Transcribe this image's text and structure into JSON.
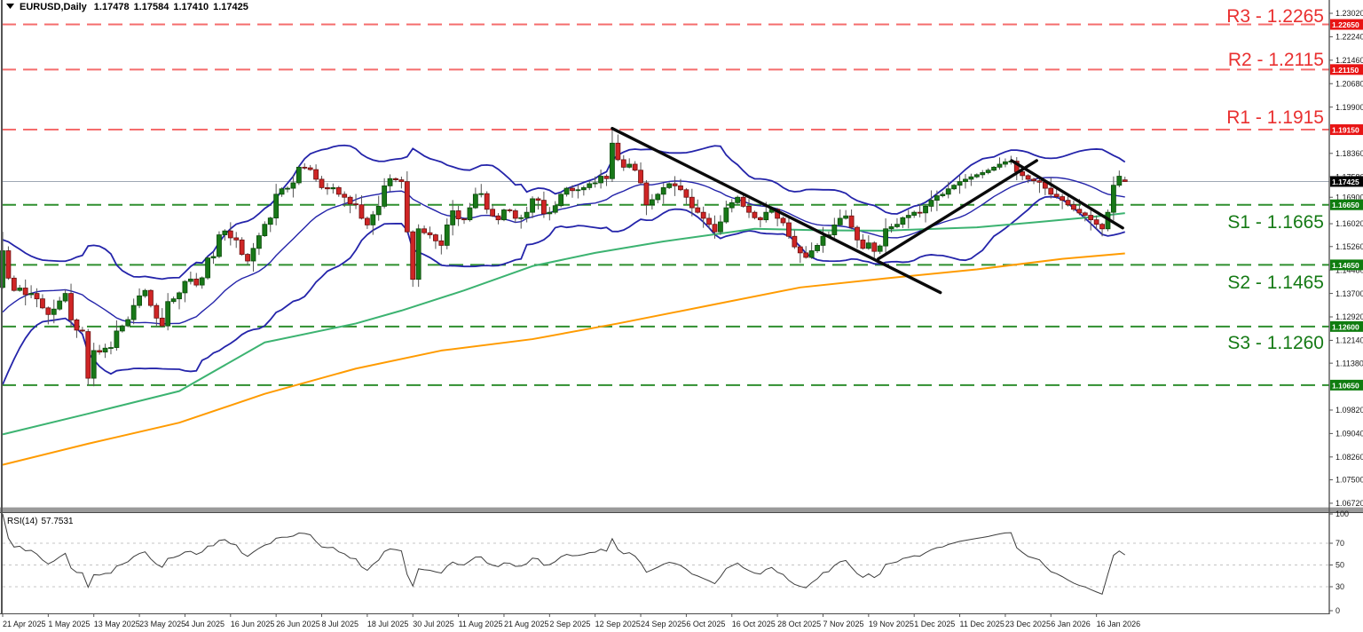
{
  "header": {
    "symbol": "EURUSD,Daily",
    "open": "1.17478",
    "high": "1.17584",
    "low": "1.17410",
    "close": "1.17425"
  },
  "colors": {
    "bull": "#187818",
    "bull_border": "#0a4a0a",
    "bear": "#cf2525",
    "bear_border": "#6b0f0f",
    "wick": "#555555",
    "bollinger": "#2424aa",
    "ma_fast": "#3cb371",
    "ma_slow": "#ff9b00",
    "resistance_line": "#f56c6c",
    "resistance_text": "#e93030",
    "support_line": "#2f8f2f",
    "support_text": "#157a15",
    "resistance_badge_bg": "#e81414",
    "support_badge_bg": "#0f7c0f",
    "current_badge_bg": "#000000",
    "current_price_line": "#9fa8b4",
    "trendline": "#0a0a0a",
    "rsi_line": "#3d3d3d",
    "rsi_grid": "#c4c4c4",
    "frame": "#555555"
  },
  "chart_data": {
    "type": "candlestick",
    "symbol": "EURUSD",
    "timeframe": "Daily",
    "last_ohlc": {
      "open": 1.17478,
      "high": 1.17584,
      "low": 1.1741,
      "close": 1.17425
    },
    "seed": 42,
    "price_axis": {
      "ylim": [
        1.06423,
        1.23463
      ],
      "ticks": [
        {
          "v": 1.2302,
          "label": "1.23020"
        },
        {
          "v": 1.2224,
          "label": "1.22240"
        },
        {
          "v": 1.2146,
          "label": "1.21460"
        },
        {
          "v": 1.2068,
          "label": "1.20680"
        },
        {
          "v": 1.199,
          "label": "1.19900"
        },
        {
          "v": 1.1836,
          "label": "1.18360"
        },
        {
          "v": 1.1758,
          "label": "1.17580"
        },
        {
          "v": 1.169,
          "label": "1.16900"
        },
        {
          "v": 1.1602,
          "label": "1.16020"
        },
        {
          "v": 1.1526,
          "label": "1.15260"
        },
        {
          "v": 1.1448,
          "label": "1.14480"
        },
        {
          "v": 1.137,
          "label": "1.13700"
        },
        {
          "v": 1.1292,
          "label": "1.12920"
        },
        {
          "v": 1.1214,
          "label": "1.12140"
        },
        {
          "v": 1.1138,
          "label": "1.11380"
        },
        {
          "v": 1.0982,
          "label": "1.09820"
        },
        {
          "v": 1.0904,
          "label": "1.09040"
        },
        {
          "v": 1.0826,
          "label": "1.08260"
        },
        {
          "v": 1.075,
          "label": "1.07500"
        },
        {
          "v": 1.0672,
          "label": "1.06720"
        }
      ],
      "badges": [
        {
          "label": "1.22650",
          "price": 1.2265,
          "kind": "resistance"
        },
        {
          "label": "1.21150",
          "price": 1.2115,
          "kind": "resistance"
        },
        {
          "label": "1.19150",
          "price": 1.1915,
          "kind": "resistance"
        },
        {
          "label": "1.17425",
          "price": 1.17425,
          "kind": "current"
        },
        {
          "label": "1.16650",
          "price": 1.1665,
          "kind": "support"
        },
        {
          "label": "1.14650",
          "price": 1.1465,
          "kind": "support"
        },
        {
          "label": "1.12600",
          "price": 1.126,
          "kind": "support"
        },
        {
          "label": "1.10650",
          "price": 1.1065,
          "kind": "support"
        }
      ]
    },
    "time_axis": {
      "ticks": [
        {
          "label": "21 Apr 2025",
          "i": 0
        },
        {
          "label": "1 May 2025",
          "i": 8
        },
        {
          "label": "13 May 2025",
          "i": 16
        },
        {
          "label": "23 May 2025",
          "i": 24
        },
        {
          "label": "4 Jun 2025",
          "i": 32
        },
        {
          "label": "16 Jun 2025",
          "i": 40
        },
        {
          "label": "26 Jun 2025",
          "i": 48
        },
        {
          "label": "8 Jul 2025",
          "i": 56
        },
        {
          "label": "18 Jul 2025",
          "i": 64
        },
        {
          "label": "30 Jul 2025",
          "i": 72
        },
        {
          "label": "11 Aug 2025",
          "i": 80
        },
        {
          "label": "21 Aug 2025",
          "i": 88
        },
        {
          "label": "2 Sep 2025",
          "i": 96
        },
        {
          "label": "12 Sep 2025",
          "i": 104
        },
        {
          "label": "24 Sep 2025",
          "i": 112
        },
        {
          "label": "6 Oct 2025",
          "i": 120
        },
        {
          "label": "16 Oct 2025",
          "i": 128
        },
        {
          "label": "28 Oct 2025",
          "i": 136
        },
        {
          "label": "7 Nov 2025",
          "i": 144
        },
        {
          "label": "19 Nov 2025",
          "i": 152
        },
        {
          "label": "1 Dec 2025",
          "i": 160
        },
        {
          "label": "11 Dec 2025",
          "i": 168
        },
        {
          "label": "23 Dec 2025",
          "i": 176
        },
        {
          "label": "6 Jan 2026",
          "i": 184
        },
        {
          "label": "16 Jan 2026",
          "i": 192
        }
      ]
    },
    "closes": [
      1.1512,
      1.1421,
      1.138,
      1.1388,
      1.1366,
      1.137,
      1.1352,
      1.1322,
      1.13,
      1.1318,
      1.1345,
      1.137,
      1.1282,
      1.1248,
      1.1245,
      1.1088,
      1.118,
      1.1175,
      1.1188,
      1.119,
      1.1245,
      1.1262,
      1.1283,
      1.133,
      1.1362,
      1.138,
      1.133,
      1.1288,
      1.1262,
      1.1343,
      1.1352,
      1.1372,
      1.141,
      1.1418,
      1.1398,
      1.1422,
      1.1488,
      1.1493,
      1.1565,
      1.1578,
      1.1555,
      1.1548,
      1.15,
      1.1478,
      1.152,
      1.1562,
      1.16,
      1.1621,
      1.17,
      1.1718,
      1.172,
      1.1738,
      1.179,
      1.1788,
      1.1782,
      1.175,
      1.1722,
      1.1718,
      1.1722,
      1.17,
      1.169,
      1.1668,
      1.1665,
      1.162,
      1.1598,
      1.1632,
      1.166,
      1.1728,
      1.1752,
      1.1748,
      1.1742,
      1.1575,
      1.1417,
      1.1585,
      1.1572,
      1.1565,
      1.1545,
      1.153,
      1.1598,
      1.1645,
      1.1618,
      1.1615,
      1.1655,
      1.17,
      1.1702,
      1.165,
      1.1628,
      1.1615,
      1.1648,
      1.1645,
      1.162,
      1.1622,
      1.164,
      1.1685,
      1.168,
      1.1635,
      1.164,
      1.1662,
      1.17,
      1.172,
      1.1712,
      1.1715,
      1.1722,
      1.1735,
      1.1738,
      1.176,
      1.1752,
      1.187,
      1.1815,
      1.179,
      1.18,
      1.178,
      1.1738,
      1.1665,
      1.1682,
      1.17,
      1.1722,
      1.1735,
      1.1728,
      1.1715,
      1.169,
      1.1655,
      1.164,
      1.162,
      1.16,
      1.1575,
      1.1608,
      1.1655,
      1.1672,
      1.169,
      1.166,
      1.164,
      1.1622,
      1.1615,
      1.164,
      1.165,
      1.162,
      1.1605,
      1.156,
      1.1525,
      1.1505,
      1.149,
      1.1512,
      1.153,
      1.156,
      1.1565,
      1.1598,
      1.162,
      1.1628,
      1.159,
      1.1548,
      1.152,
      1.1538,
      1.151,
      1.1528,
      1.1585,
      1.1592,
      1.16,
      1.1622,
      1.163,
      1.164,
      1.1638,
      1.166,
      1.168,
      1.1695,
      1.17,
      1.1718,
      1.173,
      1.1742,
      1.175,
      1.1758,
      1.1765,
      1.1772,
      1.178,
      1.179,
      1.18,
      1.1808,
      1.181,
      1.1775,
      1.1762,
      1.175,
      1.1745,
      1.174,
      1.172,
      1.17,
      1.1692,
      1.168,
      1.1665,
      1.165,
      1.1638,
      1.163,
      1.1615,
      1.16,
      1.1585,
      1.164,
      1.173,
      1.176,
      1.17425
    ],
    "prehistory_anchors": [
      [
        -200,
        1.065
      ],
      [
        -160,
        1.072
      ],
      [
        -120,
        1.068
      ],
      [
        -95,
        1.078
      ],
      [
        -70,
        1.082
      ],
      [
        -45,
        1.08
      ],
      [
        -32,
        1.083
      ],
      [
        -22,
        1.094
      ],
      [
        -14,
        1.125
      ],
      [
        -8,
        1.136
      ],
      [
        -4,
        1.14
      ],
      [
        -1,
        1.145
      ]
    ],
    "candle_overrides": {
      "0": {
        "o": 1.139,
        "h": 1.1575,
        "l": 1.1385
      },
      "15": {
        "o": 1.1243,
        "h": 1.1252,
        "l": 1.1065
      },
      "72": {
        "h": 1.158,
        "l": 1.1392
      },
      "73": {
        "h": 1.16,
        "l": 1.1392
      },
      "107": {
        "h": 1.1919,
        "l": 1.1741
      },
      "177": {
        "h": 1.1828
      },
      "197": {
        "o": 1.17478,
        "h": 1.17584,
        "l": 1.1741
      }
    },
    "indicators": {
      "bollinger": {
        "period": 20,
        "deviation": 2
      },
      "ma_fast": {
        "points": [
          [
            0,
            1.0901
          ],
          [
            15,
            1.097
          ],
          [
            31,
            1.1045
          ],
          [
            46,
            1.1207
          ],
          [
            62,
            1.127
          ],
          [
            70,
            1.1313
          ],
          [
            81,
            1.138
          ],
          [
            93,
            1.1461
          ],
          [
            104,
            1.1505
          ],
          [
            116,
            1.1543
          ],
          [
            132,
            1.1585
          ],
          [
            144,
            1.158
          ],
          [
            155,
            1.1579
          ],
          [
            171,
            1.159
          ],
          [
            182,
            1.1608
          ],
          [
            190,
            1.1622
          ],
          [
            197,
            1.1637
          ]
        ]
      },
      "ma_slow": {
        "points": [
          [
            0,
            1.08
          ],
          [
            15,
            1.087
          ],
          [
            31,
            1.094
          ],
          [
            46,
            1.1036
          ],
          [
            62,
            1.112
          ],
          [
            77,
            1.118
          ],
          [
            93,
            1.1218
          ],
          [
            108,
            1.127
          ],
          [
            124,
            1.133
          ],
          [
            140,
            1.139
          ],
          [
            155,
            1.142
          ],
          [
            171,
            1.145
          ],
          [
            186,
            1.1485
          ],
          [
            197,
            1.1503
          ]
        ]
      },
      "rsi": {
        "name": "RSI(14)",
        "value": "57.7531",
        "period": 14,
        "ticks": [
          100,
          70,
          50,
          30,
          0
        ],
        "gridlines": [
          70,
          50,
          30
        ]
      }
    },
    "levels": {
      "resistance": [
        {
          "label": "R3 - 1.2265",
          "price": 1.2265
        },
        {
          "label": "R2 - 1.2115",
          "price": 1.2115
        },
        {
          "label": "R1 - 1.1915",
          "price": 1.1915
        }
      ],
      "support": [
        {
          "label": "S1 - 1.1665",
          "price": 1.1665
        },
        {
          "label": "S2 - 1.1465",
          "price": 1.1465
        },
        {
          "label": "S3 - 1.1260",
          "price": 1.126
        }
      ],
      "extra_support": {
        "price": 1.1065
      }
    },
    "current_price": {
      "value": "1.17425",
      "price": 1.17425
    },
    "trendlines": [
      {
        "i1": 107,
        "p1": 1.1919,
        "i2": 164.6,
        "p2": 1.1373
      },
      {
        "i1": 153.7,
        "p1": 1.1485,
        "i2": 181.5,
        "p2": 1.1812
      },
      {
        "i1": 177.1,
        "p1": 1.1812,
        "i2": 196.6,
        "p2": 1.1588
      }
    ]
  }
}
